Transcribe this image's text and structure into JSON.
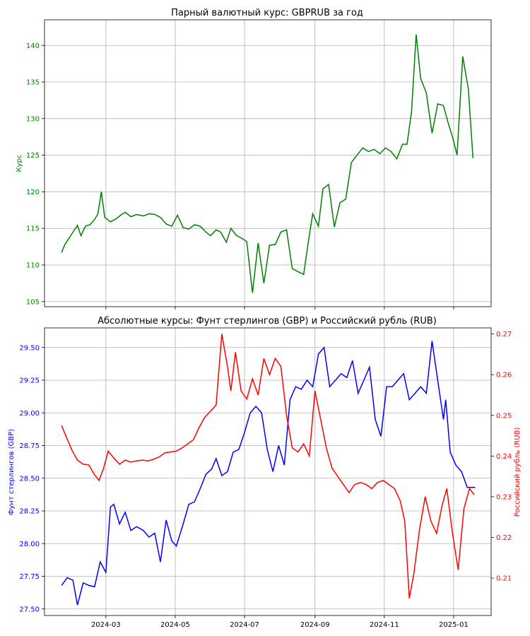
{
  "chart_data": [
    {
      "type": "line",
      "title": "Парный валютный курс: GBPRUB за год",
      "xlabel": "",
      "ylabel": "Курс",
      "ylim": [
        104.3,
        143.5
      ],
      "yticks": [
        105,
        110,
        115,
        120,
        125,
        130,
        135,
        140
      ],
      "xticks": [
        "2024-03",
        "2024-05",
        "2024-07",
        "2024-09",
        "2024-11",
        "2025-01"
      ],
      "xlim": [
        "2024-01-07",
        "2025-02-03"
      ],
      "grid": true,
      "colors": {
        "series": "#008000",
        "axis": "#008000"
      },
      "series": [
        {
          "x": [
            "2024-01-22",
            "2024-01-25",
            "2024-01-30",
            "2024-02-05",
            "2024-02-08",
            "2024-02-12",
            "2024-02-16",
            "2024-02-20",
            "2024-02-23",
            "2024-02-26",
            "2024-02-29",
            "2024-03-05",
            "2024-03-10",
            "2024-03-14",
            "2024-03-18",
            "2024-03-23",
            "2024-03-28",
            "2024-04-03",
            "2024-04-08",
            "2024-04-13",
            "2024-04-18",
            "2024-04-23",
            "2024-04-28",
            "2024-05-03",
            "2024-05-08",
            "2024-05-13",
            "2024-05-18",
            "2024-05-23",
            "2024-05-28",
            "2024-06-01",
            "2024-06-06",
            "2024-06-10",
            "2024-06-15",
            "2024-06-19",
            "2024-06-24",
            "2024-06-28",
            "2024-07-03",
            "2024-07-08",
            "2024-07-13",
            "2024-07-18",
            "2024-07-23",
            "2024-07-28",
            "2024-08-02",
            "2024-08-07",
            "2024-08-12",
            "2024-08-17",
            "2024-08-22",
            "2024-08-26",
            "2024-08-30",
            "2024-09-04",
            "2024-09-08",
            "2024-09-13",
            "2024-09-18",
            "2024-09-23",
            "2024-09-28",
            "2024-10-03",
            "2024-10-08",
            "2024-10-13",
            "2024-10-18",
            "2024-10-23",
            "2024-10-28",
            "2024-11-02",
            "2024-11-07",
            "2024-11-12",
            "2024-11-17",
            "2024-11-21",
            "2024-11-25",
            "2024-11-29",
            "2024-12-03",
            "2024-12-08",
            "2024-12-13",
            "2024-12-18",
            "2024-12-23",
            "2024-12-27",
            "2024-12-31",
            "2025-01-04",
            "2025-01-09",
            "2025-01-14",
            "2025-01-18"
          ],
          "values": [
            111.7,
            112.8,
            114.0,
            115.4,
            114.0,
            115.3,
            115.5,
            116.2,
            117.0,
            120.0,
            116.5,
            115.9,
            116.3,
            116.8,
            117.2,
            116.6,
            116.9,
            116.7,
            117.0,
            116.9,
            116.5,
            115.6,
            115.3,
            116.8,
            115.1,
            114.9,
            115.5,
            115.3,
            114.5,
            114.0,
            114.8,
            114.5,
            113.1,
            115.0,
            114.0,
            113.7,
            113.2,
            106.2,
            113.0,
            107.5,
            112.7,
            112.8,
            114.5,
            114.8,
            109.5,
            109.1,
            108.7,
            113.0,
            117.0,
            115.3,
            120.4,
            121.0,
            115.2,
            118.5,
            119.0,
            124.0,
            125.0,
            126.0,
            125.5,
            125.8,
            125.2,
            126.0,
            125.5,
            124.5,
            126.5,
            126.5,
            131.0,
            141.5,
            135.5,
            133.5,
            128.0,
            132.0,
            131.8,
            129.5,
            127.5,
            125.0,
            138.5,
            134.0,
            124.6
          ]
        }
      ]
    },
    {
      "type": "line",
      "title": "Абсолютные курсы: Фунт стерлингов (GBP) и Российский рубль (RUB)",
      "xlabel": "",
      "ylabel_left": "Фунт стерлингов (GBP)",
      "ylabel_right": "Российский рубль (RUB)",
      "ylim_left": [
        27.45,
        29.65
      ],
      "ylim_right": [
        0.2008,
        0.2715
      ],
      "yticks_left": [
        27.5,
        27.75,
        28.0,
        28.25,
        28.5,
        28.75,
        29.0,
        29.25,
        29.5
      ],
      "yticks_right": [
        0.21,
        0.22,
        0.23,
        0.24,
        0.25,
        0.26,
        0.27
      ],
      "xticks": [
        "2024-03",
        "2024-05",
        "2024-07",
        "2024-09",
        "2024-11",
        "2025-01"
      ],
      "xlim": [
        "2024-01-07",
        "2025-02-03"
      ],
      "grid": true,
      "colors": {
        "left": "#0000ff",
        "right": "#ff0000"
      },
      "series": [
        {
          "axis": "left",
          "color": "#0000ff",
          "x": [
            "2024-01-22",
            "2024-01-27",
            "2024-02-01",
            "2024-02-05",
            "2024-02-10",
            "2024-02-15",
            "2024-02-20",
            "2024-02-25",
            "2024-03-01",
            "2024-03-05",
            "2024-03-08",
            "2024-03-13",
            "2024-03-18",
            "2024-03-23",
            "2024-03-28",
            "2024-04-03",
            "2024-04-08",
            "2024-04-13",
            "2024-04-18",
            "2024-04-23",
            "2024-04-28",
            "2024-05-02",
            "2024-05-08",
            "2024-05-13",
            "2024-05-18",
            "2024-05-23",
            "2024-05-28",
            "2024-06-02",
            "2024-06-06",
            "2024-06-11",
            "2024-06-16",
            "2024-06-21",
            "2024-06-26",
            "2024-07-01",
            "2024-07-06",
            "2024-07-11",
            "2024-07-16",
            "2024-07-21",
            "2024-07-26",
            "2024-07-31",
            "2024-08-05",
            "2024-08-10",
            "2024-08-15",
            "2024-08-20",
            "2024-08-25",
            "2024-08-30",
            "2024-09-04",
            "2024-09-09",
            "2024-09-14",
            "2024-09-19",
            "2024-09-24",
            "2024-09-29",
            "2024-10-04",
            "2024-10-09",
            "2024-10-14",
            "2024-10-19",
            "2024-10-24",
            "2024-10-29",
            "2024-11-03",
            "2024-11-08",
            "2024-11-13",
            "2024-11-18",
            "2024-11-23",
            "2024-11-28",
            "2024-12-03",
            "2024-12-08",
            "2024-12-13",
            "2024-12-18",
            "2024-12-23",
            "2024-12-25",
            "2024-12-29",
            "2025-01-03",
            "2025-01-08",
            "2025-01-13",
            "2025-01-17",
            "2025-01-20"
          ],
          "values": [
            27.68,
            27.74,
            27.72,
            27.53,
            27.7,
            27.68,
            27.67,
            27.86,
            27.78,
            28.28,
            28.3,
            28.15,
            28.24,
            28.1,
            28.13,
            28.1,
            28.05,
            28.08,
            27.86,
            28.18,
            28.02,
            27.98,
            28.15,
            28.3,
            28.32,
            28.42,
            28.53,
            28.57,
            28.65,
            28.52,
            28.55,
            28.7,
            28.72,
            28.85,
            29.0,
            29.05,
            29.0,
            28.72,
            28.55,
            28.75,
            28.6,
            29.1,
            29.2,
            29.18,
            29.25,
            29.2,
            29.45,
            29.5,
            29.2,
            29.25,
            29.3,
            29.27,
            29.4,
            29.15,
            29.25,
            29.35,
            28.95,
            28.82,
            29.2,
            29.2,
            29.25,
            29.3,
            29.1,
            29.15,
            29.2,
            29.15,
            29.55,
            29.25,
            28.95,
            29.1,
            28.7,
            28.6,
            28.55,
            28.43,
            28.43,
            28.43
          ]
        },
        {
          "axis": "right",
          "color": "#ff0000",
          "x": [
            "2024-01-22",
            "2024-01-26",
            "2024-01-31",
            "2024-02-05",
            "2024-02-10",
            "2024-02-15",
            "2024-02-20",
            "2024-02-24",
            "2024-02-28",
            "2024-03-03",
            "2024-03-08",
            "2024-03-13",
            "2024-03-18",
            "2024-03-23",
            "2024-03-28",
            "2024-04-02",
            "2024-04-07",
            "2024-04-12",
            "2024-04-17",
            "2024-04-22",
            "2024-04-27",
            "2024-05-02",
            "2024-05-07",
            "2024-05-12",
            "2024-05-17",
            "2024-05-22",
            "2024-05-27",
            "2024-06-01",
            "2024-06-06",
            "2024-06-11",
            "2024-06-16",
            "2024-06-19",
            "2024-06-23",
            "2024-06-28",
            "2024-07-03",
            "2024-07-08",
            "2024-07-13",
            "2024-07-18",
            "2024-07-23",
            "2024-07-28",
            "2024-08-02",
            "2024-08-07",
            "2024-08-12",
            "2024-08-17",
            "2024-08-22",
            "2024-08-27",
            "2024-09-01",
            "2024-09-06",
            "2024-09-11",
            "2024-09-16",
            "2024-09-21",
            "2024-09-26",
            "2024-10-01",
            "2024-10-06",
            "2024-10-11",
            "2024-10-16",
            "2024-10-21",
            "2024-10-26",
            "2024-10-31",
            "2024-11-05",
            "2024-11-10",
            "2024-11-15",
            "2024-11-19",
            "2024-11-23",
            "2024-11-27",
            "2024-12-02",
            "2024-12-07",
            "2024-12-12",
            "2024-12-17",
            "2024-12-22",
            "2024-12-26",
            "2024-12-31",
            "2025-01-05",
            "2025-01-10",
            "2025-01-15",
            "2025-01-19"
          ],
          "values": [
            0.2475,
            0.2448,
            0.2415,
            0.239,
            0.238,
            0.2378,
            0.2354,
            0.234,
            0.237,
            0.2412,
            0.2395,
            0.238,
            0.239,
            0.2385,
            0.2388,
            0.239,
            0.2388,
            0.2392,
            0.2398,
            0.2408,
            0.241,
            0.2412,
            0.242,
            0.243,
            0.244,
            0.247,
            0.2495,
            0.251,
            0.2525,
            0.27,
            0.262,
            0.256,
            0.2655,
            0.256,
            0.254,
            0.259,
            0.255,
            0.264,
            0.26,
            0.264,
            0.262,
            0.25,
            0.242,
            0.241,
            0.243,
            0.24,
            0.256,
            0.249,
            0.242,
            0.237,
            0.235,
            0.233,
            0.231,
            0.233,
            0.2335,
            0.233,
            0.232,
            0.2335,
            0.234,
            0.233,
            0.232,
            0.229,
            0.224,
            0.205,
            0.211,
            0.222,
            0.23,
            0.224,
            0.221,
            0.228,
            0.232,
            0.221,
            0.212,
            0.227,
            0.232,
            0.2305
          ]
        }
      ]
    }
  ]
}
